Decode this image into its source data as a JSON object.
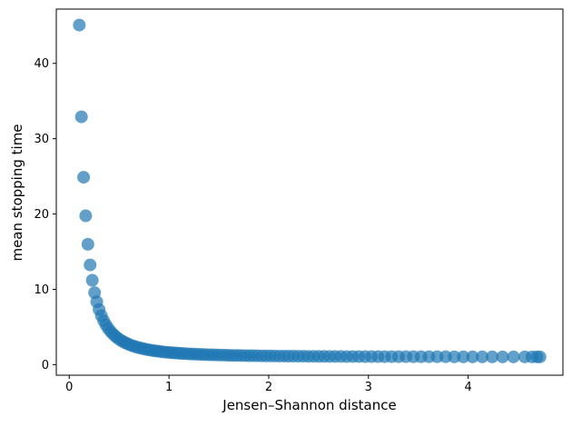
{
  "chart_data": {
    "type": "scatter",
    "title": "",
    "xlabel": "Jensen–Shannon distance",
    "ylabel": "mean stopping time",
    "xlim": [
      -0.13,
      4.95
    ],
    "ylim": [
      -1.4,
      47.2
    ],
    "xticks": [
      0,
      1,
      2,
      3,
      4
    ],
    "yticks": [
      0,
      10,
      20,
      30,
      40
    ],
    "grid": false,
    "legend": null,
    "marker": {
      "shape": "circle",
      "color": "#1f77b4",
      "opacity": 0.7,
      "radius_px": 7
    },
    "points": [
      [
        0.101,
        45.08
      ],
      [
        0.122,
        32.9
      ],
      [
        0.144,
        24.88
      ],
      [
        0.165,
        19.76
      ],
      [
        0.187,
        15.98
      ],
      [
        0.209,
        13.24
      ],
      [
        0.231,
        11.2
      ],
      [
        0.254,
        9.56
      ],
      [
        0.276,
        8.34
      ],
      [
        0.299,
        7.32
      ],
      [
        0.322,
        6.5
      ],
      [
        0.345,
        5.83
      ],
      [
        0.369,
        5.25
      ],
      [
        0.392,
        4.79
      ],
      [
        0.416,
        4.39
      ],
      [
        0.44,
        4.05
      ],
      [
        0.464,
        3.75
      ],
      [
        0.489,
        3.49
      ],
      [
        0.514,
        3.26
      ],
      [
        0.539,
        3.07
      ],
      [
        0.564,
        2.89
      ],
      [
        0.589,
        2.74
      ],
      [
        0.615,
        2.6
      ],
      [
        0.641,
        2.48
      ],
      [
        0.667,
        2.37
      ],
      [
        0.694,
        2.27
      ],
      [
        0.721,
        2.18
      ],
      [
        0.748,
        2.1
      ],
      [
        0.775,
        2.02
      ],
      [
        0.803,
        1.95
      ],
      [
        0.831,
        1.89
      ],
      [
        0.859,
        1.84
      ],
      [
        0.887,
        1.79
      ],
      [
        0.916,
        1.74
      ],
      [
        0.945,
        1.69
      ],
      [
        0.975,
        1.65
      ],
      [
        1.004,
        1.62
      ],
      [
        1.035,
        1.58
      ],
      [
        1.065,
        1.55
      ],
      [
        1.096,
        1.52
      ],
      [
        1.127,
        1.49
      ],
      [
        1.159,
        1.47
      ],
      [
        1.191,
        1.44
      ],
      [
        1.223,
        1.42
      ],
      [
        1.256,
        1.4
      ],
      [
        1.289,
        1.38
      ],
      [
        1.323,
        1.36
      ],
      [
        1.357,
        1.34
      ],
      [
        1.392,
        1.32
      ],
      [
        1.427,
        1.31
      ],
      [
        1.462,
        1.3
      ],
      [
        1.498,
        1.28
      ],
      [
        1.535,
        1.27
      ],
      [
        1.572,
        1.26
      ],
      [
        1.609,
        1.24
      ],
      [
        1.647,
        1.23
      ],
      [
        1.686,
        1.22
      ],
      [
        1.725,
        1.21
      ],
      [
        1.765,
        1.2
      ],
      [
        1.805,
        1.19
      ],
      [
        1.846,
        1.19
      ],
      [
        1.888,
        1.18
      ],
      [
        1.93,
        1.17
      ],
      [
        1.973,
        1.16
      ],
      [
        2.017,
        1.16
      ],
      [
        2.062,
        1.15
      ],
      [
        2.107,
        1.14
      ],
      [
        2.153,
        1.14
      ],
      [
        2.2,
        1.13
      ],
      [
        2.248,
        1.13
      ],
      [
        2.297,
        1.12
      ],
      [
        2.347,
        1.12
      ],
      [
        2.397,
        1.11
      ],
      [
        2.449,
        1.11
      ],
      [
        2.502,
        1.1
      ],
      [
        2.556,
        1.1
      ],
      [
        2.611,
        1.09
      ],
      [
        2.667,
        1.09
      ],
      [
        2.724,
        1.09
      ],
      [
        2.782,
        1.08
      ],
      [
        2.842,
        1.08
      ],
      [
        2.903,
        1.08
      ],
      [
        2.966,
        1.07
      ],
      [
        3.03,
        1.07
      ],
      [
        3.096,
        1.07
      ],
      [
        3.163,
        1.06
      ],
      [
        3.232,
        1.06
      ],
      [
        3.303,
        1.06
      ],
      [
        3.376,
        1.06
      ],
      [
        3.451,
        1.05
      ],
      [
        3.528,
        1.05
      ],
      [
        3.607,
        1.05
      ],
      [
        3.689,
        1.05
      ],
      [
        3.774,
        1.05
      ],
      [
        3.861,
        1.04
      ],
      [
        3.951,
        1.04
      ],
      [
        4.044,
        1.04
      ],
      [
        4.141,
        1.04
      ],
      [
        4.241,
        1.04
      ],
      [
        4.345,
        1.03
      ],
      [
        4.454,
        1.03
      ],
      [
        4.567,
        1.03
      ],
      [
        4.64,
        1.03
      ],
      [
        4.69,
        1.03
      ],
      [
        4.72,
        1.03
      ]
    ]
  },
  "figure": {
    "background": "#ffffff",
    "spine_color": "#000000",
    "tick_color": "#000000",
    "tick_label_color": "#000000"
  }
}
